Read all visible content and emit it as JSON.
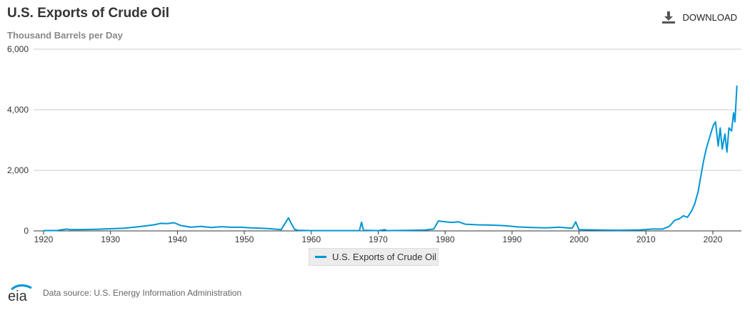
{
  "header": {
    "title": "U.S. Exports of Crude Oil",
    "subtitle": "Thousand Barrels per Day",
    "download_label": "DOWNLOAD"
  },
  "footer": {
    "logo_text": "eia",
    "source": "Data source: U.S. Energy Information Administration"
  },
  "chart_data": {
    "type": "line",
    "title": "U.S. Exports of Crude Oil",
    "ylabel": "Thousand Barrels per Day",
    "xlabel": "",
    "xlim": [
      1920,
      2024
    ],
    "ylim": [
      0,
      6000
    ],
    "grid": true,
    "legend": "bottom-center",
    "color": "#0096d6",
    "x_ticks": [
      "1920",
      "1930",
      "1940",
      "1950",
      "1960",
      "1970",
      "1980",
      "1990",
      "2000",
      "2010",
      "2020"
    ],
    "y_ticks": [
      "0",
      "2,000",
      "4,000",
      "6,000"
    ],
    "series": [
      {
        "name": "U.S. Exports of Crude Oil",
        "x": [
          1920,
          1922,
          1923.5,
          1924,
          1926,
          1928,
          1930,
          1932,
          1933.5,
          1935,
          1936.5,
          1937.5,
          1938.5,
          1939.5,
          1940.5,
          1942,
          1943.5,
          1945,
          1946.5,
          1948,
          1949.5,
          1951,
          1952.5,
          1954,
          1955.5,
          1956.6,
          1957,
          1957.5,
          1958,
          1960,
          1965,
          1967.2,
          1967.5,
          1967.8,
          1970,
          1971,
          1971.3,
          1975,
          1977,
          1978.3,
          1979,
          1980,
          1981,
          1982,
          1983,
          1985,
          1987,
          1989,
          1991,
          1993,
          1995,
          1997,
          1999,
          1999.5,
          2000,
          2003,
          2006,
          2009,
          2011,
          2012.5,
          2013.5,
          2014.3,
          2015,
          2015.6,
          2016.2,
          2016.8,
          2017.3,
          2017.8,
          2018.2,
          2018.6,
          2019,
          2019.4,
          2019.8,
          2020.1,
          2020.4,
          2020.8,
          2021.1,
          2021.4,
          2021.8,
          2022.1,
          2022.4,
          2022.8,
          2023.1,
          2023.3,
          2023.6
        ],
        "values": [
          10,
          15,
          60,
          40,
          45,
          55,
          70,
          90,
          120,
          160,
          200,
          250,
          240,
          270,
          180,
          120,
          150,
          110,
          140,
          120,
          120,
          100,
          90,
          70,
          40,
          430,
          250,
          50,
          20,
          10,
          10,
          10,
          290,
          20,
          10,
          40,
          10,
          20,
          30,
          60,
          330,
          300,
          280,
          300,
          220,
          200,
          190,
          170,
          130,
          110,
          100,
          120,
          90,
          300,
          40,
          30,
          20,
          30,
          60,
          60,
          150,
          350,
          400,
          500,
          450,
          650,
          900,
          1300,
          1800,
          2300,
          2700,
          3000,
          3300,
          3500,
          3600,
          2800,
          3400,
          2700,
          3200,
          2600,
          3400,
          3300,
          3900,
          3600,
          4800
        ]
      }
    ]
  }
}
